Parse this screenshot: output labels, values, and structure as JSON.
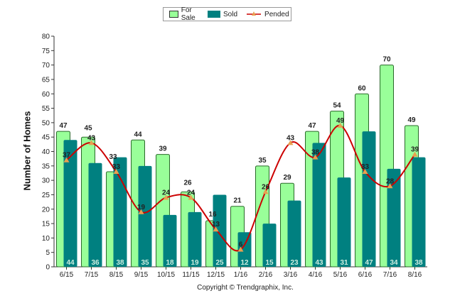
{
  "chart_data": {
    "type": "bar",
    "title": "",
    "xlabel": "",
    "ylabel": "Number of Homes",
    "ylim": [
      0,
      80
    ],
    "ytick_step": 5,
    "grid": false,
    "legend_position": "top-center",
    "categories": [
      "6/15",
      "7/15",
      "8/15",
      "9/15",
      "10/15",
      "11/15",
      "12/15",
      "1/16",
      "2/16",
      "3/16",
      "4/16",
      "5/16",
      "6/16",
      "7/16",
      "8/16"
    ],
    "series": [
      {
        "name": "For Sale",
        "kind": "bar",
        "color": "#99ff99",
        "values": [
          47,
          45,
          33,
          44,
          39,
          26,
          16,
          21,
          35,
          29,
          47,
          54,
          60,
          70,
          49
        ]
      },
      {
        "name": "Sold",
        "kind": "bar",
        "color": "#008080",
        "values": [
          44,
          36,
          38,
          35,
          18,
          19,
          25,
          12,
          15,
          23,
          43,
          31,
          47,
          34,
          38
        ]
      },
      {
        "name": "Pended",
        "kind": "line",
        "color": "#cc0000",
        "marker_color": "#e8a050",
        "values": [
          37,
          43,
          33,
          19,
          24,
          24,
          13,
          6,
          26,
          43,
          38,
          49,
          33,
          28,
          39
        ]
      }
    ]
  },
  "legend": {
    "for_sale": "For Sale",
    "sold": "Sold",
    "pended": "Pended"
  },
  "copyright": "Copyright © Trendgraphix, Inc."
}
